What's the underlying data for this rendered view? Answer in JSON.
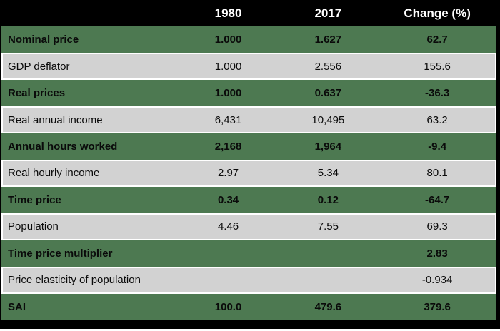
{
  "colors": {
    "header_bg": "#000000",
    "header_text": "#ffffff",
    "row_green": "#4d7951",
    "row_gray": "#d2d2d2",
    "row_text": "#0a0a0a",
    "separator": "#ffffff"
  },
  "table": {
    "header": {
      "label": "",
      "y1980": "1980",
      "y2017": "2017",
      "change": "Change (%)"
    },
    "rows": [
      {
        "label": "Nominal price",
        "v1980": "1.000",
        "v2017": "1.627",
        "change": "62.7"
      },
      {
        "label": "GDP deflator",
        "v1980": "1.000",
        "v2017": "2.556",
        "change": "155.6"
      },
      {
        "label": "Real prices",
        "v1980": "1.000",
        "v2017": "0.637",
        "change": "-36.3"
      },
      {
        "label": "Real annual income",
        "v1980": "6,431",
        "v2017": "10,495",
        "change": "63.2"
      },
      {
        "label": "Annual hours worked",
        "v1980": "2,168",
        "v2017": "1,964",
        "change": "-9.4"
      },
      {
        "label": "Real hourly income",
        "v1980": "2.97",
        "v2017": "5.34",
        "change": "80.1"
      },
      {
        "label": "Time price",
        "v1980": "0.34",
        "v2017": "0.12",
        "change": "-64.7"
      },
      {
        "label": "Population",
        "v1980": "4.46",
        "v2017": "7.55",
        "change": "69.3"
      },
      {
        "label": "Time price multiplier",
        "v1980": "",
        "v2017": "",
        "change": "2.83"
      },
      {
        "label": "Price elasticity of population",
        "v1980": "",
        "v2017": "",
        "change": "-0.934"
      },
      {
        "label": "SAI",
        "v1980": "100.0",
        "v2017": "479.6",
        "change": "379.6"
      }
    ]
  }
}
